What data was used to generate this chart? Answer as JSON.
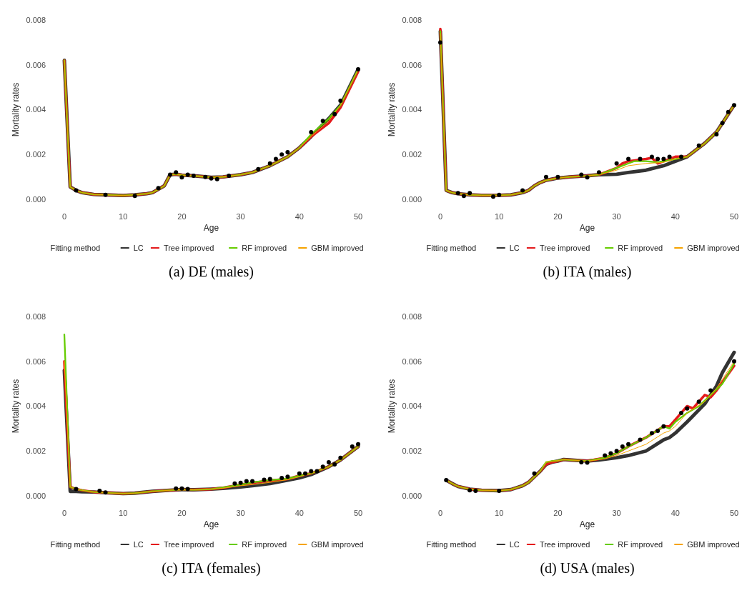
{
  "chart_data": [
    {
      "type": "line",
      "title": "(a) DE (males)",
      "xlabel": "Age",
      "ylabel": "Mortality rates",
      "legend_title": "Fitting method",
      "legend": "bottom",
      "line_style": "solid",
      "xlim": [
        0,
        50
      ],
      "xticks": [
        0,
        10,
        20,
        30,
        40,
        50
      ],
      "ylim": [
        0,
        0.008
      ],
      "yticks": [
        {
          "value": 0,
          "label": "0.000"
        },
        {
          "value": 0.002,
          "label": "0.002"
        },
        {
          "value": 0.004,
          "label": "0.004"
        },
        {
          "value": 0.006,
          "label": "0.006"
        },
        {
          "value": 0.008,
          "label": "0.008"
        }
      ],
      "series": [
        {
          "name": "LC",
          "color": "#333333",
          "x": [
            0,
            1,
            2,
            3,
            5,
            7,
            10,
            12,
            14,
            15,
            16,
            17,
            18,
            19,
            20,
            22,
            25,
            27,
            30,
            32,
            35,
            38,
            40,
            42,
            45,
            47,
            50
          ],
          "values": [
            0.0062,
            0.00055,
            0.0004,
            0.0003,
            0.00022,
            0.0002,
            0.00017,
            0.0002,
            0.00025,
            0.0003,
            0.00045,
            0.0006,
            0.0011,
            0.00112,
            0.00108,
            0.00105,
            0.00098,
            0.001,
            0.0011,
            0.0012,
            0.0015,
            0.0019,
            0.0023,
            0.0028,
            0.0036,
            0.0042,
            0.0058
          ]
        },
        {
          "name": "Tree improved",
          "color": "#e41a1c",
          "x": [
            0,
            1,
            2,
            3,
            5,
            7,
            10,
            12,
            14,
            15,
            16,
            17,
            18,
            19,
            20,
            22,
            25,
            27,
            30,
            32,
            35,
            38,
            40,
            42,
            45,
            47,
            50
          ],
          "values": [
            0.0062,
            0.00055,
            0.0004,
            0.0003,
            0.00022,
            0.0002,
            0.00017,
            0.0002,
            0.00025,
            0.0003,
            0.00045,
            0.0006,
            0.0011,
            0.00112,
            0.00108,
            0.00105,
            0.00098,
            0.001,
            0.0011,
            0.0012,
            0.0015,
            0.0019,
            0.0023,
            0.0028,
            0.0034,
            0.0041,
            0.0057
          ]
        },
        {
          "name": "RF improved",
          "color": "#66cc00",
          "x": [
            0,
            1,
            2,
            3,
            5,
            7,
            10,
            12,
            14,
            15,
            16,
            17,
            18,
            19,
            20,
            22,
            25,
            27,
            30,
            32,
            35,
            38,
            40,
            42,
            45,
            47,
            50
          ],
          "values": [
            0.0062,
            0.00055,
            0.0004,
            0.0003,
            0.00022,
            0.0002,
            0.00017,
            0.0002,
            0.00025,
            0.0003,
            0.00045,
            0.0006,
            0.0011,
            0.00112,
            0.00108,
            0.00105,
            0.00098,
            0.001,
            0.0011,
            0.0012,
            0.0015,
            0.0019,
            0.0023,
            0.0029,
            0.0036,
            0.0042,
            0.0058
          ]
        },
        {
          "name": "GBM improved",
          "color": "#f5a300",
          "x": [
            0,
            1,
            2,
            3,
            5,
            7,
            10,
            12,
            14,
            15,
            16,
            17,
            18,
            19,
            20,
            22,
            25,
            27,
            30,
            32,
            35,
            38,
            40,
            42,
            45,
            47,
            50
          ],
          "values": [
            0.0062,
            0.00055,
            0.0004,
            0.0003,
            0.00022,
            0.0002,
            0.00017,
            0.0002,
            0.00025,
            0.0003,
            0.00045,
            0.0006,
            0.0011,
            0.00112,
            0.00108,
            0.00105,
            0.00098,
            0.001,
            0.0011,
            0.0012,
            0.0015,
            0.0019,
            0.0023,
            0.0028,
            0.0035,
            0.0042,
            0.0058
          ]
        },
        {
          "type": "scatter",
          "marker": "circle",
          "color": "#000000",
          "x": [
            2,
            7,
            12,
            16,
            18,
            19,
            20,
            21,
            22,
            24,
            25,
            26,
            28,
            33,
            35,
            36,
            37,
            38,
            42,
            44,
            46,
            47,
            50
          ],
          "values": [
            0.0004,
            0.0002,
            0.00015,
            0.0005,
            0.0011,
            0.0012,
            0.00098,
            0.0011,
            0.00105,
            0.001,
            0.00093,
            0.0009,
            0.00105,
            0.00135,
            0.0016,
            0.0018,
            0.002,
            0.0021,
            0.003,
            0.0035,
            0.0038,
            0.0044,
            0.0058
          ]
        }
      ]
    },
    {
      "type": "line",
      "title": "(b) ITA (males)",
      "xlabel": "Age",
      "ylabel": "Mortality rates",
      "legend_title": "Fitting method",
      "legend": "bottom",
      "line_style": "solid",
      "xlim": [
        0,
        50
      ],
      "xticks": [
        0,
        10,
        20,
        30,
        40,
        50
      ],
      "ylim": [
        0,
        0.008
      ],
      "yticks": [
        {
          "value": 0,
          "label": "0.000"
        },
        {
          "value": 0.002,
          "label": "0.002"
        },
        {
          "value": 0.004,
          "label": "0.004"
        },
        {
          "value": 0.006,
          "label": "0.006"
        },
        {
          "value": 0.008,
          "label": "0.008"
        }
      ],
      "series": [
        {
          "name": "LC",
          "color": "#333333",
          "x": [
            0,
            1,
            2,
            3,
            5,
            7,
            10,
            12,
            14,
            15,
            16,
            17,
            18,
            19,
            20,
            22,
            25,
            27,
            30,
            32,
            35,
            38,
            40,
            42,
            45,
            47,
            50
          ],
          "values": [
            0.0075,
            0.0004,
            0.0003,
            0.00025,
            0.0002,
            0.00018,
            0.00018,
            0.0002,
            0.0003,
            0.0004,
            0.0006,
            0.00075,
            0.00085,
            0.0009,
            0.00095,
            0.001,
            0.00105,
            0.0011,
            0.00112,
            0.0012,
            0.0013,
            0.0015,
            0.0017,
            0.0019,
            0.0025,
            0.003,
            0.0042
          ]
        },
        {
          "name": "Tree improved",
          "color": "#e41a1c",
          "x": [
            0,
            1,
            2,
            3,
            5,
            7,
            10,
            12,
            14,
            15,
            16,
            17,
            18,
            19,
            20,
            22,
            25,
            27,
            30,
            31,
            32,
            35,
            36,
            37,
            38,
            40,
            42,
            45,
            47,
            50
          ],
          "values": [
            0.0076,
            0.0004,
            0.0003,
            0.00025,
            0.0002,
            0.00018,
            0.00018,
            0.0002,
            0.0003,
            0.0004,
            0.0006,
            0.00075,
            0.00085,
            0.0009,
            0.00095,
            0.001,
            0.00105,
            0.0011,
            0.0014,
            0.0016,
            0.0017,
            0.0018,
            0.00185,
            0.0016,
            0.0017,
            0.0019,
            0.0019,
            0.0025,
            0.003,
            0.0042
          ]
        },
        {
          "name": "RF improved",
          "color": "#66cc00",
          "x": [
            0,
            1,
            2,
            3,
            5,
            7,
            10,
            12,
            14,
            15,
            16,
            17,
            18,
            19,
            20,
            22,
            25,
            27,
            30,
            32,
            33,
            35,
            37,
            38,
            40,
            42,
            45,
            47,
            50
          ],
          "values": [
            0.0075,
            0.0004,
            0.0003,
            0.00025,
            0.0002,
            0.00018,
            0.00018,
            0.0002,
            0.0003,
            0.0004,
            0.0006,
            0.00075,
            0.00085,
            0.0009,
            0.00095,
            0.001,
            0.00105,
            0.0011,
            0.0014,
            0.0016,
            0.0017,
            0.0017,
            0.00165,
            0.0017,
            0.0018,
            0.0019,
            0.0025,
            0.003,
            0.0042
          ]
        },
        {
          "name": "GBM improved",
          "color": "#f5a300",
          "x": [
            0,
            1,
            2,
            3,
            5,
            7,
            10,
            12,
            14,
            15,
            16,
            17,
            18,
            19,
            20,
            22,
            25,
            27,
            30,
            32,
            35,
            38,
            40,
            42,
            45,
            47,
            50
          ],
          "values": [
            0.0074,
            0.0004,
            0.0003,
            0.00025,
            0.0002,
            0.00018,
            0.00018,
            0.0002,
            0.0003,
            0.0004,
            0.0006,
            0.00075,
            0.00085,
            0.0009,
            0.00095,
            0.001,
            0.00105,
            0.0011,
            0.0013,
            0.0015,
            0.0016,
            0.00165,
            0.0018,
            0.0019,
            0.0025,
            0.003,
            0.0042
          ]
        },
        {
          "type": "scatter",
          "marker": "circle",
          "color": "#000000",
          "x": [
            0,
            3,
            4,
            5,
            9,
            10,
            14,
            18,
            20,
            24,
            25,
            27,
            30,
            32,
            34,
            36,
            37,
            38,
            39,
            41,
            44,
            47,
            48,
            49,
            50
          ],
          "values": [
            0.007,
            0.00028,
            0.00015,
            0.00028,
            0.00012,
            0.0002,
            0.0004,
            0.001,
            0.001,
            0.0011,
            0.00098,
            0.0012,
            0.0016,
            0.0018,
            0.0018,
            0.0019,
            0.0018,
            0.0018,
            0.0019,
            0.0019,
            0.0024,
            0.0029,
            0.0034,
            0.0039,
            0.0042
          ]
        }
      ]
    },
    {
      "type": "line",
      "title": "(c) ITA (females)",
      "xlabel": "Age",
      "ylabel": "Mortality rates",
      "legend_title": "Fitting method",
      "legend": "bottom",
      "line_style": "solid",
      "xlim": [
        0,
        50
      ],
      "xticks": [
        0,
        10,
        20,
        30,
        40,
        50
      ],
      "ylim": [
        0,
        0.008
      ],
      "yticks": [
        {
          "value": 0,
          "label": "0.000"
        },
        {
          "value": 0.002,
          "label": "0.002"
        },
        {
          "value": 0.004,
          "label": "0.004"
        },
        {
          "value": 0.006,
          "label": "0.006"
        },
        {
          "value": 0.008,
          "label": "0.008"
        }
      ],
      "series": [
        {
          "name": "LC",
          "color": "#333333",
          "x": [
            0,
            1,
            2,
            3,
            5,
            7,
            10,
            12,
            15,
            18,
            20,
            22,
            25,
            27,
            30,
            32,
            35,
            38,
            40,
            42,
            45,
            47,
            50
          ],
          "values": [
            0.0056,
            0.0002,
            0.0002,
            0.00018,
            0.00017,
            0.00014,
            0.0001,
            0.00012,
            0.0002,
            0.00025,
            0.00028,
            0.00027,
            0.0003,
            0.00033,
            0.0004,
            0.00045,
            0.00055,
            0.0007,
            0.0008,
            0.00095,
            0.0013,
            0.0016,
            0.0022
          ]
        },
        {
          "name": "Tree improved",
          "color": "#e41a1c",
          "x": [
            0,
            1,
            2,
            3,
            5,
            7,
            10,
            12,
            15,
            18,
            20,
            22,
            25,
            27,
            30,
            32,
            35,
            38,
            40,
            42,
            45,
            47,
            50
          ],
          "values": [
            0.006,
            0.0004,
            0.0003,
            0.00025,
            0.00017,
            0.00014,
            0.0001,
            0.00012,
            0.0002,
            0.00025,
            0.00028,
            0.00027,
            0.0003,
            0.00036,
            0.0005,
            0.00058,
            0.00068,
            0.00075,
            0.0009,
            0.001,
            0.0013,
            0.0016,
            0.0022
          ]
        },
        {
          "name": "RF improved",
          "color": "#66cc00",
          "x": [
            0,
            1,
            2,
            3,
            5,
            7,
            10,
            12,
            15,
            18,
            20,
            22,
            25,
            27,
            30,
            32,
            35,
            38,
            40,
            42,
            45,
            47,
            50
          ],
          "values": [
            0.0072,
            0.0004,
            0.0003,
            0.00025,
            0.00017,
            0.00014,
            0.0001,
            0.00012,
            0.0002,
            0.00025,
            0.00028,
            0.00027,
            0.0003,
            0.00037,
            0.0005,
            0.0006,
            0.0007,
            0.00077,
            0.0009,
            0.001,
            0.0013,
            0.0016,
            0.0022
          ]
        },
        {
          "name": "GBM improved",
          "color": "#f5a300",
          "x": [
            0,
            1,
            2,
            3,
            5,
            7,
            10,
            12,
            15,
            18,
            20,
            22,
            25,
            27,
            30,
            32,
            35,
            38,
            40,
            42,
            45,
            47,
            50
          ],
          "values": [
            0.006,
            0.0004,
            0.0003,
            0.00025,
            0.00017,
            0.00014,
            0.0001,
            0.00012,
            0.0002,
            0.00025,
            0.00028,
            0.00027,
            0.0003,
            0.00034,
            0.00045,
            0.0005,
            0.0006,
            0.00072,
            0.00085,
            0.001,
            0.0013,
            0.0016,
            0.0022
          ]
        },
        {
          "type": "scatter",
          "marker": "circle",
          "color": "#000000",
          "x": [
            2,
            6,
            7,
            19,
            20,
            21,
            29,
            30,
            31,
            32,
            34,
            35,
            37,
            38,
            40,
            41,
            42,
            43,
            44,
            45,
            46,
            47,
            49,
            50
          ],
          "values": [
            0.0003,
            0.00022,
            0.00015,
            0.00033,
            0.00033,
            0.0003,
            0.00055,
            0.00058,
            0.00065,
            0.00065,
            0.00072,
            0.00075,
            0.0008,
            0.00085,
            0.001,
            0.001,
            0.0011,
            0.0011,
            0.0013,
            0.0015,
            0.0014,
            0.0017,
            0.0022,
            0.0023
          ]
        }
      ]
    },
    {
      "type": "line",
      "title": "(d) USA (males)",
      "xlabel": "Age",
      "ylabel": "Mortality rates",
      "legend_title": "Fitting method",
      "legend": "bottom",
      "line_style": "solid",
      "xlim": [
        0,
        50
      ],
      "xticks": [
        0,
        10,
        20,
        30,
        40,
        50
      ],
      "ylim": [
        0,
        0.008
      ],
      "yticks": [
        {
          "value": 0,
          "label": "0.000"
        },
        {
          "value": 0.002,
          "label": "0.002"
        },
        {
          "value": 0.004,
          "label": "0.004"
        },
        {
          "value": 0.006,
          "label": "0.006"
        },
        {
          "value": 0.008,
          "label": "0.008"
        }
      ],
      "series": [
        {
          "name": "LC",
          "color": "#333333",
          "x": [
            1,
            2,
            3,
            5,
            7,
            10,
            12,
            14,
            15,
            16,
            17,
            18,
            19,
            20,
            21,
            22,
            25,
            27,
            30,
            32,
            35,
            38,
            39,
            40,
            42,
            45,
            47,
            48,
            50
          ],
          "values": [
            0.0007,
            0.00055,
            0.00042,
            0.0003,
            0.00025,
            0.00023,
            0.00028,
            0.00045,
            0.0006,
            0.00085,
            0.0011,
            0.0014,
            0.0015,
            0.00155,
            0.00162,
            0.0016,
            0.00155,
            0.0016,
            0.0017,
            0.0018,
            0.002,
            0.0025,
            0.0026,
            0.0028,
            0.0033,
            0.0041,
            0.0049,
            0.0055,
            0.0064
          ]
        },
        {
          "name": "Tree improved",
          "color": "#e41a1c",
          "x": [
            1,
            2,
            3,
            5,
            7,
            10,
            12,
            14,
            15,
            16,
            17,
            18,
            19,
            20,
            21,
            22,
            25,
            28,
            30,
            32,
            35,
            38,
            39,
            40,
            41,
            42,
            43,
            45,
            46,
            47,
            50
          ],
          "values": [
            0.0007,
            0.00055,
            0.00042,
            0.0003,
            0.00025,
            0.00023,
            0.00028,
            0.00045,
            0.0006,
            0.00085,
            0.0011,
            0.0014,
            0.0015,
            0.00155,
            0.00162,
            0.0016,
            0.00155,
            0.0017,
            0.0019,
            0.0022,
            0.0026,
            0.0031,
            0.0031,
            0.0034,
            0.0037,
            0.004,
            0.0039,
            0.0045,
            0.0044,
            0.0047,
            0.0058
          ]
        },
        {
          "name": "RF improved",
          "color": "#66cc00",
          "x": [
            1,
            2,
            3,
            5,
            7,
            10,
            12,
            14,
            15,
            16,
            17,
            18,
            19,
            20,
            21,
            22,
            25,
            28,
            30,
            32,
            35,
            38,
            39,
            40,
            42,
            44,
            46,
            48,
            50
          ],
          "values": [
            0.0007,
            0.00055,
            0.00042,
            0.0003,
            0.00025,
            0.00023,
            0.00028,
            0.00045,
            0.0006,
            0.00085,
            0.0011,
            0.0015,
            0.00155,
            0.00157,
            0.00162,
            0.0016,
            0.00155,
            0.0017,
            0.0019,
            0.0022,
            0.0026,
            0.0031,
            0.003,
            0.0033,
            0.0037,
            0.004,
            0.0045,
            0.005,
            0.0059
          ]
        },
        {
          "name": "GBM improved",
          "color": "#f5a300",
          "x": [
            1,
            2,
            3,
            5,
            7,
            10,
            12,
            14,
            15,
            16,
            17,
            18,
            19,
            20,
            21,
            22,
            25,
            28,
            30,
            32,
            35,
            38,
            39,
            40,
            42,
            45,
            47,
            50
          ],
          "values": [
            0.0007,
            0.00055,
            0.00042,
            0.0003,
            0.00025,
            0.00023,
            0.00028,
            0.00045,
            0.0006,
            0.00085,
            0.0011,
            0.0015,
            0.00155,
            0.00157,
            0.00162,
            0.0016,
            0.00155,
            0.00165,
            0.0018,
            0.002,
            0.0023,
            0.0028,
            0.0029,
            0.0031,
            0.0037,
            0.0042,
            0.0048,
            0.006
          ]
        },
        {
          "type": "scatter",
          "marker": "circle",
          "color": "#000000",
          "x": [
            1,
            5,
            6,
            10,
            16,
            24,
            25,
            28,
            29,
            30,
            31,
            32,
            34,
            36,
            37,
            38,
            41,
            42,
            44,
            46,
            50
          ],
          "values": [
            0.0007,
            0.00025,
            0.00022,
            0.00022,
            0.001,
            0.0015,
            0.00148,
            0.0018,
            0.0019,
            0.002,
            0.0022,
            0.0023,
            0.0025,
            0.0028,
            0.0029,
            0.0031,
            0.0037,
            0.0039,
            0.0042,
            0.0047,
            0.006
          ]
        }
      ]
    }
  ]
}
